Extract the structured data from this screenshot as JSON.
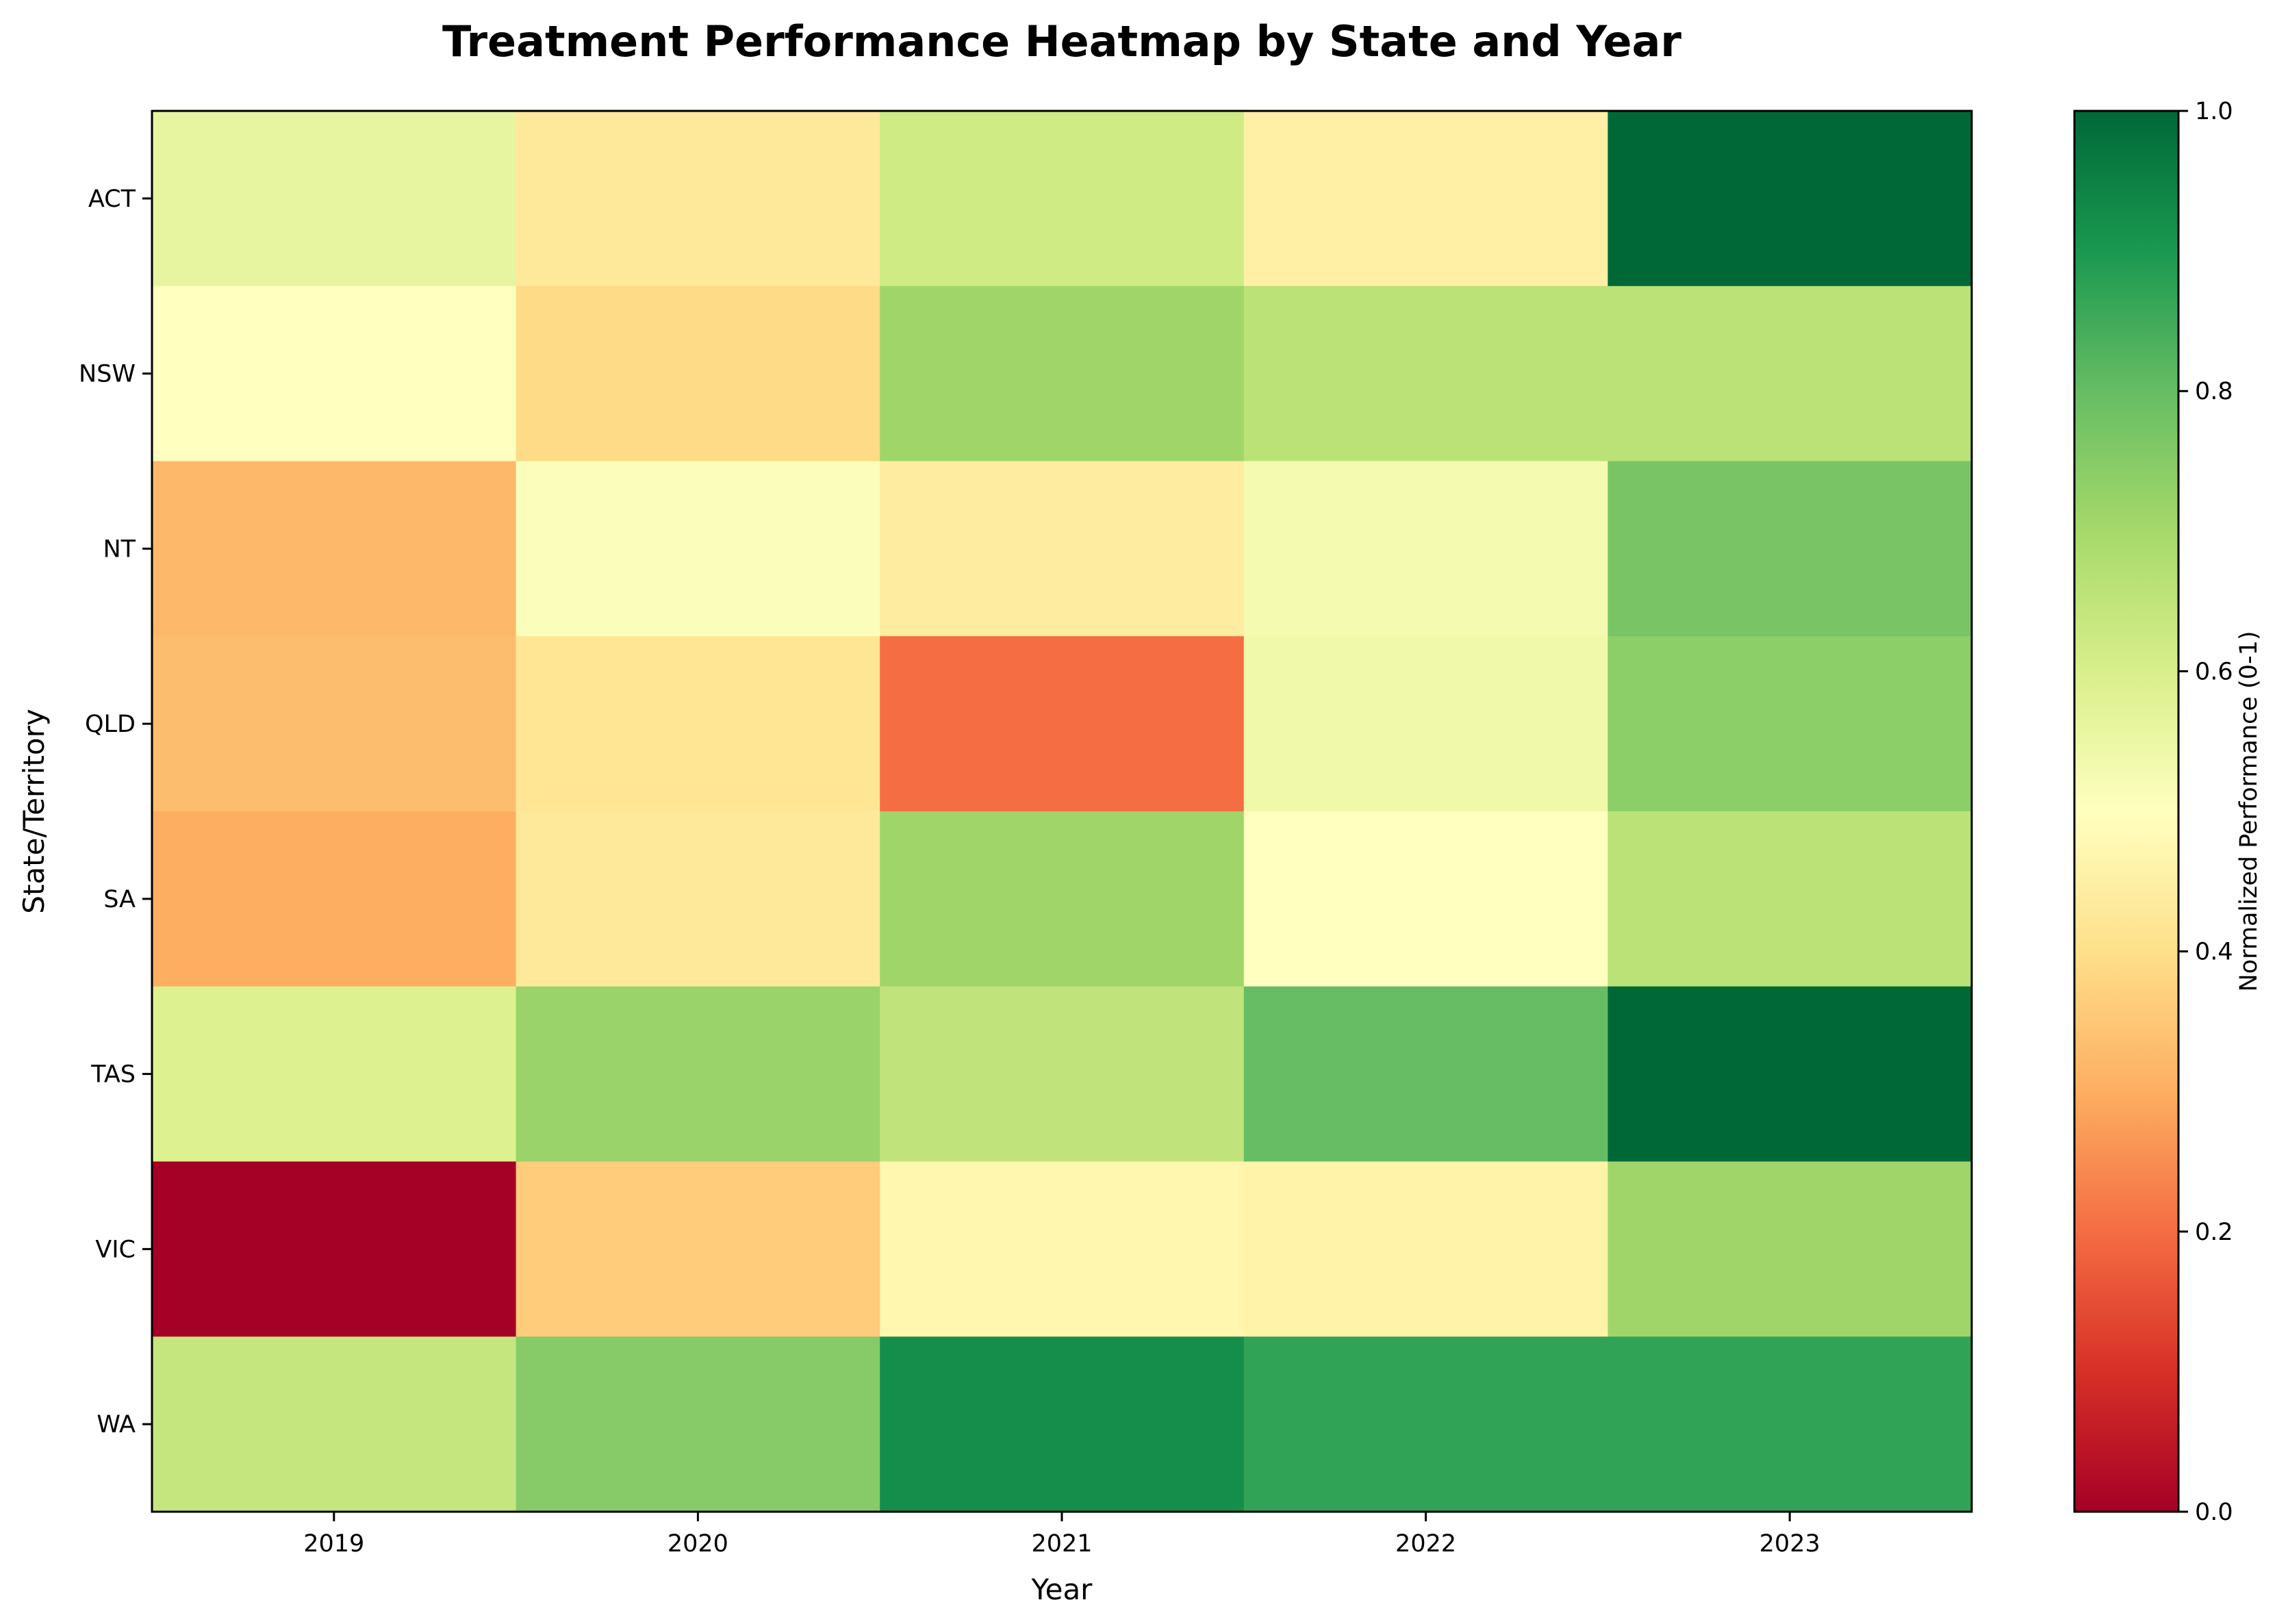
{
  "chart_data": {
    "type": "heatmap",
    "title": "Treatment Performance Heatmap by State and Year",
    "xlabel": "Year",
    "ylabel": "State/Territory",
    "x_categories": [
      "2019",
      "2020",
      "2021",
      "2022",
      "2023"
    ],
    "y_categories": [
      "ACT",
      "NSW",
      "NT",
      "QLD",
      "SA",
      "TAS",
      "VIC",
      "WA"
    ],
    "values": [
      [
        0.56,
        0.43,
        0.62,
        0.45,
        1.0
      ],
      [
        0.5,
        0.39,
        0.71,
        0.66,
        0.66
      ],
      [
        0.32,
        0.51,
        0.44,
        0.53,
        0.77
      ],
      [
        0.33,
        0.42,
        0.2,
        0.54,
        0.74
      ],
      [
        0.3,
        0.43,
        0.71,
        0.5,
        0.66
      ],
      [
        0.59,
        0.72,
        0.65,
        0.8,
        1.0
      ],
      [
        0.0,
        0.36,
        0.47,
        0.46,
        0.71
      ],
      [
        0.64,
        0.75,
        0.92,
        0.87,
        0.87
      ]
    ],
    "colormap": "RdYlGn",
    "colorbar": {
      "label": "Normalized Performance (0-1)",
      "range": [
        0,
        1
      ],
      "ticks": [
        "0.0",
        "0.2",
        "0.4",
        "0.6",
        "0.8",
        "1.0"
      ]
    },
    "grid": false,
    "legend": "colorbar-right"
  },
  "colors": {
    "RdYlGn_stops": [
      "#a50026",
      "#d73027",
      "#f46d43",
      "#fdae61",
      "#fee08b",
      "#ffffbf",
      "#d9ef8b",
      "#a6d96a",
      "#66bd63",
      "#1a9850",
      "#006837"
    ]
  }
}
